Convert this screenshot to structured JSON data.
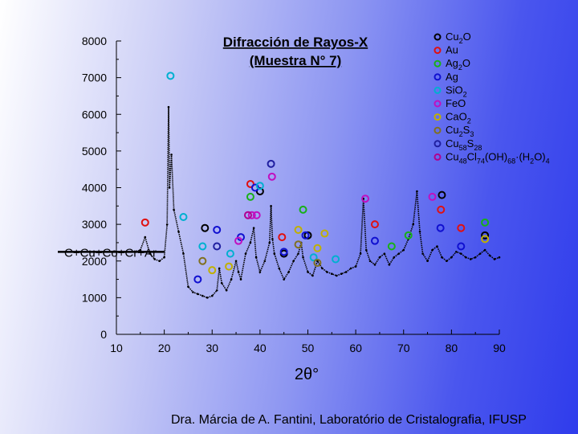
{
  "chart_data": {
    "type": "line",
    "title_line1": "Difracción de Rayos-X",
    "title_line2": "(Muestra N° 7)",
    "xlabel": "2θ°",
    "ylabel": "",
    "xlim": [
      10,
      90
    ],
    "ylim": [
      0,
      8000
    ],
    "x_ticks": [
      "10",
      "20",
      "30",
      "40",
      "50",
      "60",
      "70",
      "80",
      "90"
    ],
    "y_ticks": [
      "0",
      "1000",
      "2000",
      "3000",
      "4000",
      "5000",
      "6000",
      "7000",
      "8000"
    ],
    "grid": false,
    "baseline_label": "C+Cu+Co+Cr+Ar",
    "baseline_y": 2250,
    "series": [
      {
        "values": [
          [
            10,
            2250
          ],
          [
            14,
            2250
          ],
          [
            15,
            2300
          ],
          [
            16,
            2650
          ],
          [
            17,
            2200
          ],
          [
            18,
            2050
          ],
          [
            19,
            2000
          ],
          [
            20,
            2100
          ],
          [
            20.6,
            3000
          ],
          [
            20.9,
            6200
          ],
          [
            21.1,
            4000
          ],
          [
            21.5,
            4900
          ],
          [
            22,
            3400
          ],
          [
            23,
            2800
          ],
          [
            24,
            2200
          ],
          [
            25,
            1300
          ],
          [
            26,
            1150
          ],
          [
            27,
            1100
          ],
          [
            28,
            1050
          ],
          [
            29,
            1000
          ],
          [
            30,
            1050
          ],
          [
            31,
            1200
          ],
          [
            31.5,
            1800
          ],
          [
            32,
            1400
          ],
          [
            33,
            1200
          ],
          [
            34,
            1500
          ],
          [
            35,
            2000
          ],
          [
            35.5,
            1700
          ],
          [
            36,
            1500
          ],
          [
            37,
            2200
          ],
          [
            38,
            2500
          ],
          [
            38.7,
            2900
          ],
          [
            39.2,
            2100
          ],
          [
            40,
            1700
          ],
          [
            41,
            2000
          ],
          [
            42,
            2500
          ],
          [
            42.3,
            3500
          ],
          [
            42.6,
            2600
          ],
          [
            43,
            2200
          ],
          [
            44,
            1800
          ],
          [
            45,
            1500
          ],
          [
            46,
            1700
          ],
          [
            47,
            2000
          ],
          [
            48,
            2200
          ],
          [
            48.6,
            2500
          ],
          [
            49,
            2100
          ],
          [
            50,
            1700
          ],
          [
            51,
            1600
          ],
          [
            52,
            2000
          ],
          [
            53,
            1800
          ],
          [
            54,
            1700
          ],
          [
            55,
            1650
          ],
          [
            56,
            1600
          ],
          [
            57,
            1650
          ],
          [
            58,
            1700
          ],
          [
            59,
            1800
          ],
          [
            60,
            1850
          ],
          [
            61,
            2200
          ],
          [
            61.6,
            3700
          ],
          [
            62.2,
            2300
          ],
          [
            63,
            2000
          ],
          [
            64,
            1900
          ],
          [
            65,
            2100
          ],
          [
            66,
            2200
          ],
          [
            67,
            1900
          ],
          [
            68,
            2100
          ],
          [
            69,
            2200
          ],
          [
            70,
            2300
          ],
          [
            71,
            2600
          ],
          [
            72,
            3000
          ],
          [
            72.8,
            3900
          ],
          [
            73.4,
            2800
          ],
          [
            74,
            2200
          ],
          [
            75,
            2000
          ],
          [
            76,
            2300
          ],
          [
            77,
            2400
          ],
          [
            78,
            2100
          ],
          [
            79,
            2000
          ],
          [
            80,
            2100
          ],
          [
            81,
            2250
          ],
          [
            82,
            2200
          ],
          [
            83,
            2100
          ],
          [
            84,
            2050
          ],
          [
            85,
            2100
          ],
          [
            86,
            2200
          ],
          [
            87,
            2300
          ],
          [
            88,
            2150
          ],
          [
            89,
            2050
          ],
          [
            90,
            2100
          ]
        ]
      }
    ],
    "phases": [
      {
        "name": "Cu2O",
        "color": "#000000",
        "markers": [
          [
            28.5,
            2900
          ],
          [
            40,
            3900
          ],
          [
            45,
            2200
          ],
          [
            50,
            2700
          ],
          [
            78,
            3800
          ],
          [
            87,
            2700
          ]
        ]
      },
      {
        "name": "Au",
        "color": "#e01010",
        "markers": [
          [
            16,
            3050
          ],
          [
            38,
            4100
          ],
          [
            44.6,
            2650
          ],
          [
            64,
            3000
          ],
          [
            77.8,
            3400
          ],
          [
            82,
            2900
          ]
        ]
      },
      {
        "name": "Ag2O",
        "color": "#18b018",
        "markers": [
          [
            38,
            3750
          ],
          [
            49,
            3400
          ],
          [
            67.5,
            2400
          ],
          [
            71,
            2700
          ],
          [
            87,
            3050
          ]
        ]
      },
      {
        "name": "Ag",
        "color": "#1010d0",
        "markers": [
          [
            27,
            1500
          ],
          [
            31,
            2850
          ],
          [
            36,
            2650
          ],
          [
            39,
            4000
          ],
          [
            45,
            2250
          ],
          [
            49.5,
            2700
          ],
          [
            64,
            2550
          ],
          [
            77.7,
            2900
          ],
          [
            82,
            2400
          ]
        ]
      },
      {
        "name": "SiO2",
        "color": "#00b0d0",
        "markers": [
          [
            21.3,
            7050
          ],
          [
            24,
            3200
          ],
          [
            28,
            2400
          ],
          [
            33.8,
            2200
          ],
          [
            40,
            4050
          ],
          [
            51.2,
            2100
          ],
          [
            55.8,
            2050
          ]
        ]
      },
      {
        "name": "FeO",
        "color": "#c010c0",
        "markers": [
          [
            35.5,
            2550
          ],
          [
            38.3,
            3250
          ],
          [
            39.3,
            3250
          ],
          [
            42.5,
            4300
          ],
          [
            62,
            3700
          ],
          [
            76,
            3750
          ]
        ]
      },
      {
        "name": "CaO2",
        "color": "#c0b000",
        "markers": [
          [
            30,
            1750
          ],
          [
            33.5,
            1850
          ],
          [
            48,
            2850
          ],
          [
            52,
            2350
          ],
          [
            53.5,
            2750
          ],
          [
            87,
            2600
          ]
        ]
      },
      {
        "name": "Cu2S3",
        "color": "#807020",
        "markers": [
          [
            28,
            2000
          ],
          [
            48,
            2450
          ],
          [
            52,
            1950
          ]
        ]
      },
      {
        "name": "Cu58S28",
        "color": "#2020a0",
        "markers": [
          [
            31,
            2400
          ],
          [
            42.3,
            4650
          ]
        ]
      },
      {
        "name": "Cu48Cl74(OH)68·(H2O)4",
        "color": "#b00090",
        "markers": [
          [
            37.5,
            3250
          ]
        ]
      }
    ]
  },
  "legend_items": [
    {
      "color": "#000000",
      "parts": [
        {
          "t": "Cu",
          "s": "n"
        },
        {
          "t": "2",
          "s": "sub"
        },
        {
          "t": "O",
          "s": "n"
        }
      ]
    },
    {
      "color": "#e01010",
      "parts": [
        {
          "t": "Au",
          "s": "n"
        }
      ]
    },
    {
      "color": "#18b018",
      "parts": [
        {
          "t": "Ag",
          "s": "n"
        },
        {
          "t": "2",
          "s": "sub"
        },
        {
          "t": "O",
          "s": "n"
        }
      ]
    },
    {
      "color": "#1010d0",
      "parts": [
        {
          "t": "Ag",
          "s": "n"
        }
      ]
    },
    {
      "color": "#00b0d0",
      "parts": [
        {
          "t": "SiO",
          "s": "n"
        },
        {
          "t": "2",
          "s": "sub"
        }
      ]
    },
    {
      "color": "#c010c0",
      "parts": [
        {
          "t": "FeO",
          "s": "n"
        }
      ]
    },
    {
      "color": "#c0b000",
      "parts": [
        {
          "t": "CaO",
          "s": "n"
        },
        {
          "t": "2",
          "s": "sub"
        }
      ]
    },
    {
      "color": "#807020",
      "parts": [
        {
          "t": "Cu",
          "s": "n"
        },
        {
          "t": "2",
          "s": "sub"
        },
        {
          "t": "S",
          "s": "n"
        },
        {
          "t": "3",
          "s": "sub"
        }
      ]
    },
    {
      "color": "#2020a0",
      "parts": [
        {
          "t": "Cu",
          "s": "n"
        },
        {
          "t": "58",
          "s": "sub"
        },
        {
          "t": "S",
          "s": "n"
        },
        {
          "t": "28",
          "s": "sub"
        }
      ]
    },
    {
      "color": "#b00090",
      "parts": [
        {
          "t": "Cu",
          "s": "n"
        },
        {
          "t": "48",
          "s": "sub"
        },
        {
          "t": "Cl",
          "s": "n"
        },
        {
          "t": "74",
          "s": "sub"
        },
        {
          "t": "(OH)",
          "s": "n"
        },
        {
          "t": "68",
          "s": "sub"
        },
        {
          "t": "·(H",
          "s": "n"
        },
        {
          "t": "2",
          "s": "sub"
        },
        {
          "t": "O)",
          "s": "n"
        },
        {
          "t": "4",
          "s": "sub"
        }
      ]
    }
  ],
  "footer": "Dra. Márcia de A. Fantini, Laboratório de Cristalografia, IFUSP"
}
